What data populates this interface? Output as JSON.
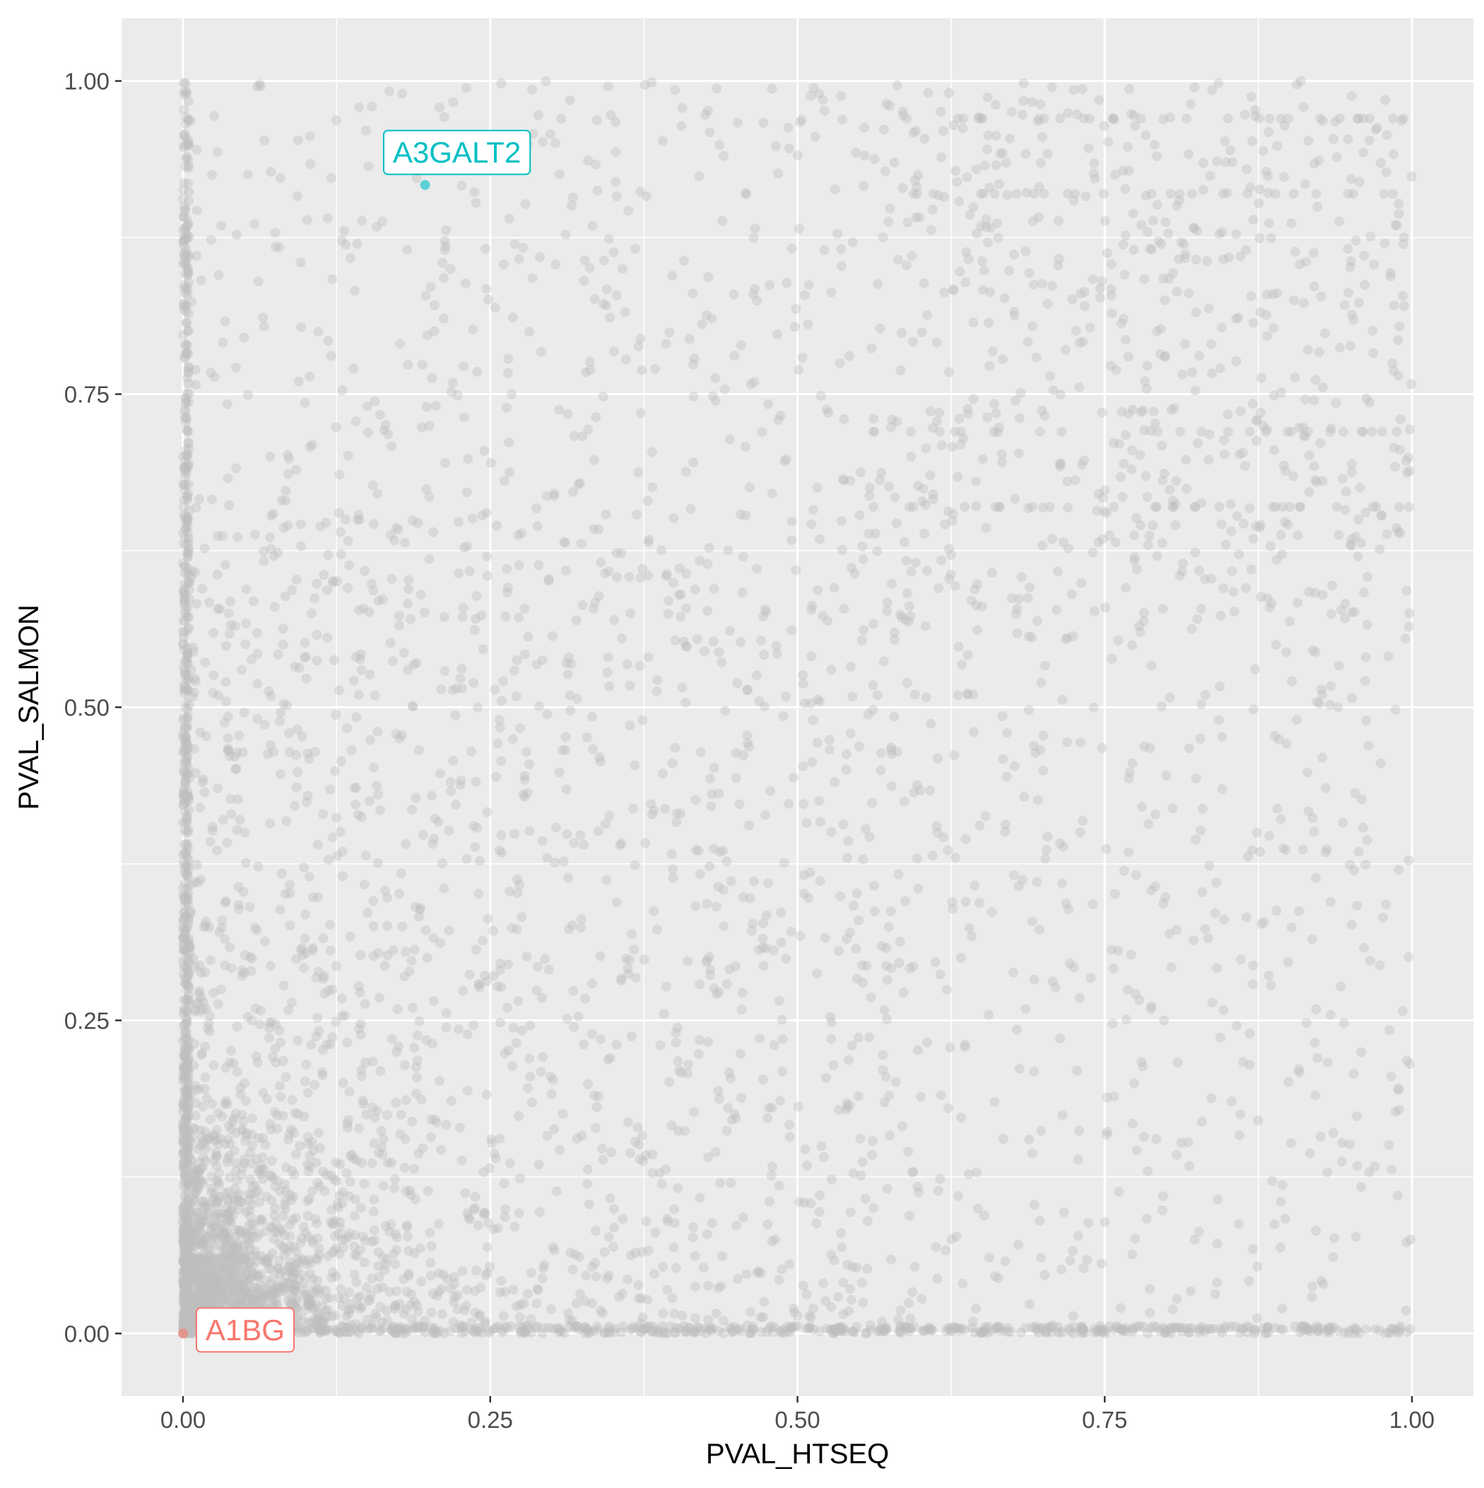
{
  "chart_data": {
    "type": "scatter",
    "title": "",
    "xlabel": "PVAL_HTSEQ",
    "ylabel": "PVAL_SALMON",
    "xlim": [
      -0.05,
      1.05
    ],
    "ylim": [
      -0.05,
      1.05
    ],
    "x_ticks": [
      "0.00",
      "0.25",
      "0.50",
      "0.75",
      "1.00"
    ],
    "y_ticks": [
      "0.00",
      "0.25",
      "0.50",
      "0.75",
      "1.00"
    ],
    "x_tick_values": [
      0,
      0.25,
      0.5,
      0.75,
      1.0
    ],
    "y_tick_values": [
      0,
      0.25,
      0.5,
      0.75,
      1.0
    ],
    "grid": true,
    "legend": "none",
    "background_points": {
      "color": "#bebebe",
      "opacity": 0.4,
      "approx_count": 5200,
      "description_of_pattern": "dense near x=0 column and y=0 row, dense cluster near origin, spread uniformly elsewhere"
    },
    "highlighted_points": [
      {
        "label": "A3GALT2",
        "x": 0.197,
        "y": 0.917,
        "color": "#00bfc4"
      },
      {
        "label": "A1BG",
        "x": 0.0,
        "y": 0.0,
        "color": "#f8766d"
      }
    ],
    "colors": {
      "panel_background": "#ebebeb",
      "grid_major": "#ffffff",
      "tick_text": "#4d4d4d",
      "axis_title": "#000000"
    }
  }
}
